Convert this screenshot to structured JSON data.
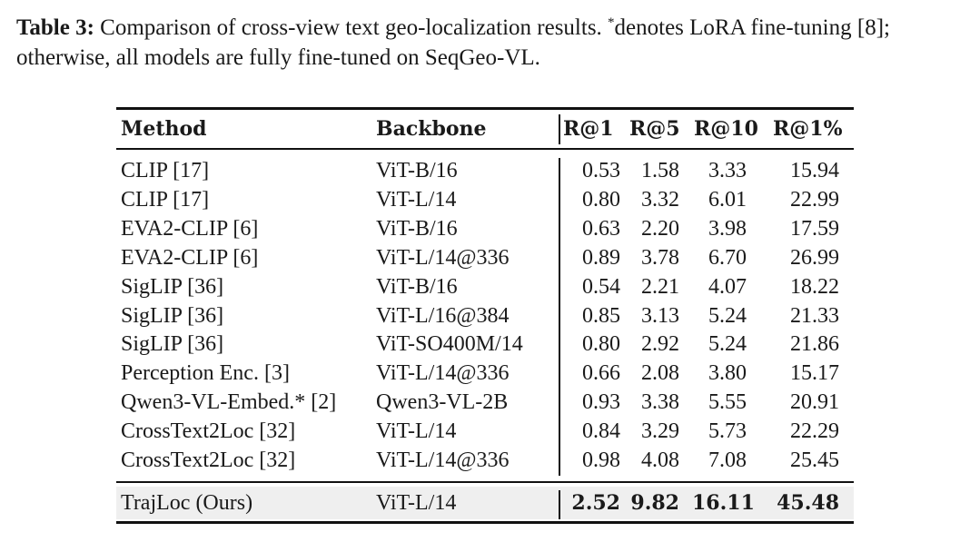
{
  "caption": {
    "label": "Table 3:",
    "text_a": " Comparison of cross-view text geo-localization results. ",
    "sup": "*",
    "text_b": "denotes LoRA fine-tuning [8]; otherwise, all models are fully fine-tuned on SeqGeo-VL."
  },
  "table": {
    "headers": [
      "Method",
      "Backbone",
      "R@1",
      "R@5",
      "R@10",
      "R@1%"
    ],
    "rows": [
      {
        "method": "CLIP [17]",
        "backbone": "ViT-B/16",
        "r1": "0.53",
        "r5": "1.58",
        "r10": "3.33",
        "r1p": "15.94"
      },
      {
        "method": "CLIP [17]",
        "backbone": "ViT-L/14",
        "r1": "0.80",
        "r5": "3.32",
        "r10": "6.01",
        "r1p": "22.99"
      },
      {
        "method": "EVA2-CLIP [6]",
        "backbone": "ViT-B/16",
        "r1": "0.63",
        "r5": "2.20",
        "r10": "3.98",
        "r1p": "17.59"
      },
      {
        "method": "EVA2-CLIP [6]",
        "backbone": "ViT-L/14@336",
        "r1": "0.89",
        "r5": "3.78",
        "r10": "6.70",
        "r1p": "26.99"
      },
      {
        "method": "SigLIP [36]",
        "backbone": "ViT-B/16",
        "r1": "0.54",
        "r5": "2.21",
        "r10": "4.07",
        "r1p": "18.22"
      },
      {
        "method": "SigLIP [36]",
        "backbone": "ViT-L/16@384",
        "r1": "0.85",
        "r5": "3.13",
        "r10": "5.24",
        "r1p": "21.33"
      },
      {
        "method": "SigLIP [36]",
        "backbone": "ViT-SO400M/14",
        "r1": "0.80",
        "r5": "2.92",
        "r10": "5.24",
        "r1p": "21.86"
      },
      {
        "method": "Perception Enc. [3]",
        "backbone": "ViT-L/14@336",
        "r1": "0.66",
        "r5": "2.08",
        "r10": "3.80",
        "r1p": "15.17"
      },
      {
        "method": "Qwen3-VL-Embed.* [2]",
        "backbone": "Qwen3-VL-2B",
        "r1": "0.93",
        "r5": "3.38",
        "r10": "5.55",
        "r1p": "20.91"
      },
      {
        "method": "CrossText2Loc [32]",
        "backbone": "ViT-L/14",
        "r1": "0.84",
        "r5": "3.29",
        "r10": "5.73",
        "r1p": "22.29"
      },
      {
        "method": "CrossText2Loc [32]",
        "backbone": "ViT-L/14@336",
        "r1": "0.98",
        "r5": "4.08",
        "r10": "7.08",
        "r1p": "25.45"
      }
    ],
    "ours": {
      "method": "TrajLoc (Ours)",
      "backbone": "ViT-L/14",
      "r1": "2.52",
      "r5": "9.82",
      "r10": "16.11",
      "r1p": "45.48"
    }
  }
}
